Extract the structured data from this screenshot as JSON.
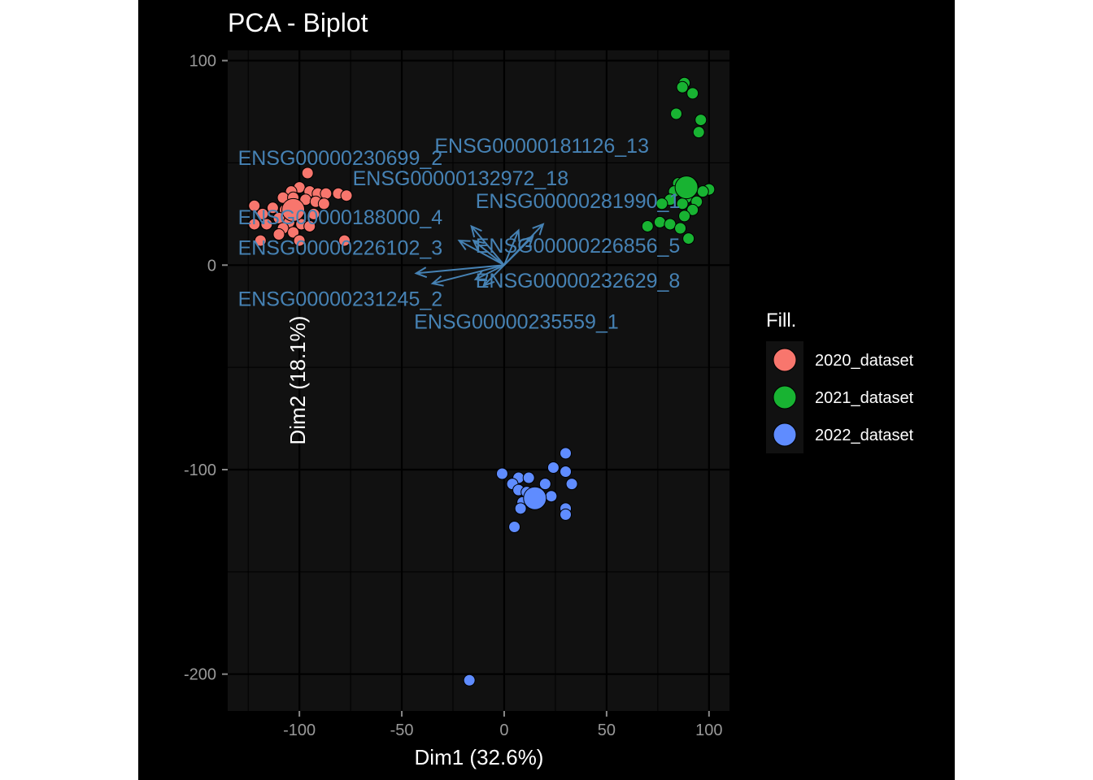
{
  "chart_data": {
    "type": "scatter",
    "title": "PCA - Biplot",
    "xlabel": "Dim1 (32.6%)",
    "ylabel": "Dim2 (18.1%)",
    "xlim": [
      -135,
      110
    ],
    "ylim": [
      -218,
      105
    ],
    "x_ticks": [
      -100,
      -50,
      0,
      50,
      100
    ],
    "x_tick_labels": [
      "-100",
      "-50",
      "0",
      "50",
      "100"
    ],
    "y_ticks": [
      100,
      0,
      -100,
      -200
    ],
    "y_tick_labels": [
      "100",
      "0",
      "-100",
      "-200"
    ],
    "grid": true,
    "legend": {
      "title": "Fill.",
      "placement": "right",
      "entries": [
        "2020_dataset",
        "2021_dataset",
        "2022_dataset"
      ]
    },
    "colors": {
      "background": "#000000",
      "panel": "#111111",
      "grid": "#000000",
      "text": "#ffffff",
      "tick_text": "#999999",
      "arrow": "#4682b4",
      "series": [
        "#f8766d",
        "#18b332",
        "#5f8cff"
      ]
    },
    "series": [
      {
        "name": "2020_dataset",
        "centroid": [
          -103,
          27
        ],
        "points": [
          [
            -96,
            45
          ],
          [
            -100,
            38
          ],
          [
            -95,
            36
          ],
          [
            -91,
            35
          ],
          [
            -87,
            35
          ],
          [
            -81,
            35
          ],
          [
            -77,
            34
          ],
          [
            -104,
            36
          ],
          [
            -108,
            33
          ],
          [
            -103,
            33
          ],
          [
            -97,
            32
          ],
          [
            -92,
            31
          ],
          [
            -88,
            30
          ],
          [
            -122,
            29
          ],
          [
            -113,
            28
          ],
          [
            -107,
            27
          ],
          [
            -101,
            27
          ],
          [
            -93,
            25
          ],
          [
            -118,
            25
          ],
          [
            -110,
            23
          ],
          [
            -105,
            21
          ],
          [
            -99,
            20
          ],
          [
            -95,
            19
          ],
          [
            -122,
            20
          ],
          [
            -116,
            20
          ],
          [
            -108,
            18
          ],
          [
            -103,
            16
          ],
          [
            -119,
            12
          ],
          [
            -110,
            15
          ],
          [
            -100,
            12
          ],
          [
            -78,
            12
          ]
        ]
      },
      {
        "name": "2021_dataset",
        "centroid": [
          89,
          38
        ],
        "points": [
          [
            88,
            89
          ],
          [
            87,
            87
          ],
          [
            92,
            84
          ],
          [
            96,
            71
          ],
          [
            84,
            74
          ],
          [
            95,
            65
          ],
          [
            85,
            40
          ],
          [
            92,
            39
          ],
          [
            100,
            37
          ],
          [
            97,
            36
          ],
          [
            83,
            36
          ],
          [
            89,
            33
          ],
          [
            94,
            31
          ],
          [
            81,
            32
          ],
          [
            87,
            30
          ],
          [
            77,
            30
          ],
          [
            92,
            27
          ],
          [
            88,
            24
          ],
          [
            70,
            19
          ],
          [
            76,
            21
          ],
          [
            81,
            20
          ],
          [
            86,
            18
          ],
          [
            90,
            13
          ]
        ]
      },
      {
        "name": "2022_dataset",
        "centroid": [
          15,
          -114
        ],
        "points": [
          [
            30,
            -92
          ],
          [
            24,
            -99
          ],
          [
            30,
            -101
          ],
          [
            -1,
            -102
          ],
          [
            7,
            -104
          ],
          [
            12,
            -104
          ],
          [
            4,
            -107
          ],
          [
            20,
            -107
          ],
          [
            33,
            -107
          ],
          [
            7,
            -110
          ],
          [
            11,
            -111
          ],
          [
            9,
            -116
          ],
          [
            23,
            -113
          ],
          [
            8,
            -119
          ],
          [
            30,
            -119
          ],
          [
            30,
            -122
          ],
          [
            5,
            -128
          ],
          [
            -17,
            -203
          ]
        ]
      }
    ],
    "variables": [
      {
        "label": "ENSG00000181126_13",
        "end": [
          7,
          17
        ],
        "label_at": [
          -34,
          55
        ]
      },
      {
        "label": "ENSG00000230699_2",
        "end": [
          -16,
          19
        ],
        "label_at": [
          -130,
          49
        ]
      },
      {
        "label": "ENSG00000132972_18",
        "end": [
          -15,
          12
        ],
        "label_at": [
          -74,
          39
        ]
      },
      {
        "label": "ENSG00000281990_1",
        "end": [
          19,
          20
        ],
        "label_at": [
          -14,
          28
        ]
      },
      {
        "label": "ENSG00000188000_4",
        "end": [
          -22,
          12
        ],
        "label_at": [
          -130,
          20
        ]
      },
      {
        "label": "ENSG00000226102_3",
        "end": [
          -43,
          -4
        ],
        "label_at": [
          -130,
          5
        ]
      },
      {
        "label": "ENSG00000226856_5",
        "end": [
          14,
          14
        ],
        "label_at": [
          -14,
          6
        ]
      },
      {
        "label": "ENSG00000232629_8",
        "end": [
          -14,
          -7
        ],
        "label_at": [
          -14,
          -11
        ]
      },
      {
        "label": "ENSG00000231245_2",
        "end": [
          -35,
          -9
        ],
        "label_at": [
          -130,
          -20
        ]
      },
      {
        "label": "ENSG00000235559_1",
        "end": [
          -10,
          -10
        ],
        "label_at": [
          -44,
          -31
        ]
      }
    ]
  }
}
